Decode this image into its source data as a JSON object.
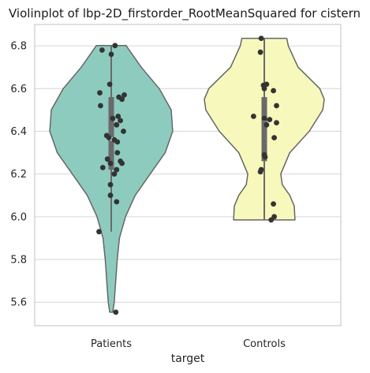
{
  "chart_data": {
    "type": "violin",
    "title": "Violinplot of lbp-2D_firstorder_RootMeanSquared for cistern",
    "xlabel": "target",
    "ylabel": "",
    "categories": [
      "Patients",
      "Controls"
    ],
    "ylim": [
      5.49,
      6.9
    ],
    "yticks": [
      5.6,
      5.8,
      6.0,
      6.2,
      6.4,
      6.6,
      6.8
    ],
    "ytick_labels": [
      "5.6",
      "5.8",
      "6.0",
      "6.2",
      "6.4",
      "6.6",
      "6.8"
    ],
    "grid": true,
    "series": [
      {
        "category": "Patients",
        "color": "#8ecbbf",
        "range": [
          5.553,
          6.801
        ],
        "whisker": [
          5.93,
          6.801
        ],
        "quartiles": [
          6.22,
          6.56
        ],
        "median": 6.365,
        "density": [
          [
            5.553,
            2
          ],
          [
            5.6,
            4
          ],
          [
            5.7,
            6
          ],
          [
            5.8,
            8
          ],
          [
            5.9,
            11
          ],
          [
            6.0,
            19
          ],
          [
            6.1,
            32
          ],
          [
            6.2,
            52
          ],
          [
            6.3,
            72
          ],
          [
            6.4,
            82
          ],
          [
            6.5,
            80
          ],
          [
            6.6,
            64
          ],
          [
            6.7,
            40
          ],
          [
            6.8,
            20
          ],
          [
            6.801,
            20
          ]
        ],
        "points": [
          6.801,
          6.78,
          6.76,
          6.62,
          6.58,
          6.57,
          6.56,
          6.55,
          6.52,
          6.47,
          6.46,
          6.45,
          6.43,
          6.4,
          6.38,
          6.37,
          6.36,
          6.35,
          6.3,
          6.27,
          6.26,
          6.25,
          6.25,
          6.23,
          6.22,
          6.2,
          6.15,
          6.1,
          6.07,
          5.93,
          5.553
        ],
        "jitter": [
          0.05,
          -0.12,
          0.0,
          -0.02,
          -0.15,
          0.17,
          0.1,
          0.14,
          -0.14,
          0.09,
          0.02,
          0.12,
          0.07,
          0.16,
          -0.06,
          -0.03,
          0.04,
          0.08,
          0.08,
          -0.05,
          0.12,
          0.14,
          -0.01,
          -0.11,
          0.07,
          0.04,
          -0.01,
          -0.01,
          0.07,
          -0.16,
          0.06
        ]
      },
      {
        "category": "Controls",
        "color": "#f7f8bb",
        "range": [
          5.985,
          6.835
        ],
        "whisker": [
          5.985,
          6.835
        ],
        "quartiles": [
          6.26,
          6.56
        ],
        "median": 6.455,
        "density": [
          [
            5.985,
            41
          ],
          [
            6.05,
            40
          ],
          [
            6.1,
            34
          ],
          [
            6.15,
            24
          ],
          [
            6.2,
            22
          ],
          [
            6.3,
            34
          ],
          [
            6.4,
            60
          ],
          [
            6.5,
            78
          ],
          [
            6.55,
            80
          ],
          [
            6.6,
            74
          ],
          [
            6.7,
            45
          ],
          [
            6.8,
            32
          ],
          [
            6.835,
            30
          ]
        ],
        "points": [
          6.835,
          6.77,
          6.62,
          6.615,
          6.6,
          6.59,
          6.52,
          6.47,
          6.46,
          6.455,
          6.44,
          6.43,
          6.37,
          6.29,
          6.28,
          6.22,
          6.21,
          6.06,
          6.0,
          5.985
        ],
        "jitter": [
          -0.04,
          -0.05,
          0.03,
          -0.01,
          0.0,
          0.12,
          0.16,
          -0.14,
          0.0,
          0.07,
          0.16,
          0.03,
          0.13,
          0.0,
          0.01,
          -0.04,
          -0.05,
          0.12,
          0.13,
          0.09
        ]
      }
    ]
  }
}
